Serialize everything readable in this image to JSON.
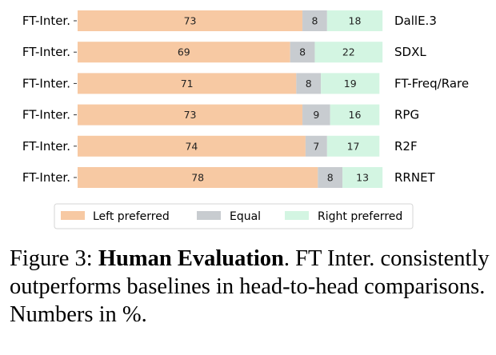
{
  "chart_data": {
    "type": "bar",
    "orientation": "horizontal",
    "stacked": true,
    "left_labels": [
      "FT-Inter.",
      "FT-Inter.",
      "FT-Inter.",
      "FT-Inter.",
      "FT-Inter.",
      "FT-Inter."
    ],
    "categories": [
      "DallE.3",
      "SDXL",
      "FT-Freq/Rare",
      "RPG",
      "R2F",
      "RRNET"
    ],
    "series": [
      {
        "name": "Left preferred",
        "values": [
          73,
          69,
          71,
          73,
          74,
          78
        ]
      },
      {
        "name": "Equal",
        "values": [
          8,
          8,
          8,
          9,
          7,
          8
        ]
      },
      {
        "name": "Right preferred",
        "values": [
          18,
          22,
          19,
          16,
          17,
          13
        ]
      }
    ],
    "xlim": [
      0,
      100
    ],
    "legend": "bottom",
    "grid": false,
    "colors": {
      "Left preferred": "#f7c9a3",
      "Equal": "#c8ccd0",
      "Right preferred": "#d3f5e2"
    }
  },
  "caption": {
    "label": "Figure 3:",
    "bold": "Human Evaluation",
    "text": ". FT Inter. consistently outperforms baselines in head-to-head comparisons. Numbers in %."
  }
}
